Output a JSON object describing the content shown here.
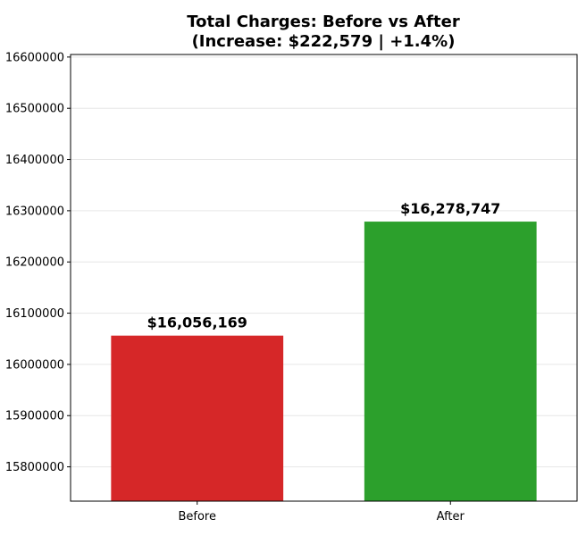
{
  "chart_data": {
    "type": "bar",
    "title_line1": "Total Charges: Before vs After",
    "title_line2": "(Increase: $222,579 | +1.4%)",
    "categories": [
      "Before",
      "After"
    ],
    "values": [
      16056169,
      16278747
    ],
    "value_labels": [
      "$16,056,169",
      "$16,278,747"
    ],
    "colors": [
      "#d62728",
      "#2ca02c"
    ],
    "xlabel": "",
    "ylabel": "",
    "ylim": [
      15733000,
      16605000
    ],
    "yticks": [
      15800000,
      15900000,
      16000000,
      16100000,
      16200000,
      16300000,
      16400000,
      16500000,
      16600000
    ],
    "ytick_labels": [
      "15800000",
      "15900000",
      "16000000",
      "16100000",
      "16200000",
      "16300000",
      "16400000",
      "16500000",
      "16600000"
    ],
    "grid": true,
    "grid_axis": "y",
    "legend": false
  }
}
